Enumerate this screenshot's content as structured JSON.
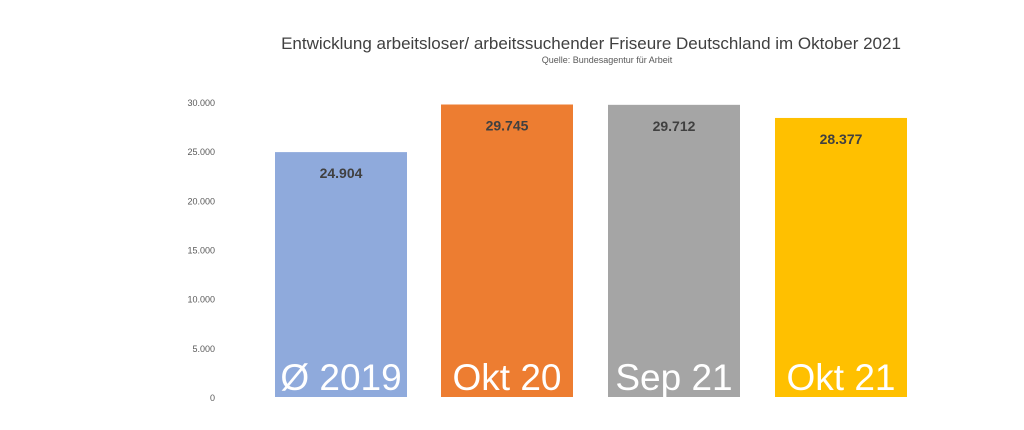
{
  "chart_data": {
    "type": "bar",
    "title": "Entwicklung arbeitsloser/ arbeitssuchender Friseure Deutschland im Oktober 2021",
    "subtitle": "Quelle: Bundesagentur für Arbeit",
    "categories": [
      "Ø 2019",
      "Okt 20",
      "Sep 21",
      "Okt 21"
    ],
    "values": [
      24904,
      29745,
      29712,
      28377
    ],
    "value_labels": [
      "24.904",
      "29.745",
      "29.712",
      "28.377"
    ],
    "colors": [
      "#8faadc",
      "#ed7d31",
      "#a5a5a5",
      "#ffc000"
    ],
    "ylim": [
      0,
      30000
    ],
    "yticks": [
      0,
      5000,
      10000,
      15000,
      20000,
      25000,
      30000
    ],
    "ytick_labels": [
      "0",
      "5.000",
      "10.000",
      "15.000",
      "20.000",
      "25.000",
      "30.000"
    ],
    "grid": false,
    "legend": "none"
  }
}
